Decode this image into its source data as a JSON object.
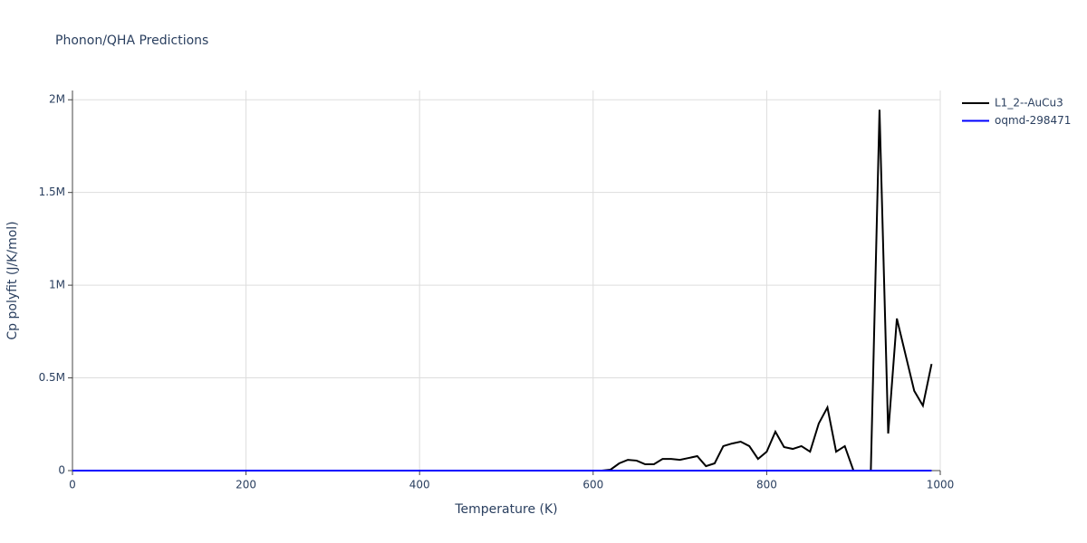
{
  "chart_data": {
    "type": "line",
    "title": "Phonon/QHA Predictions",
    "x_label": "Temperature (K)",
    "y_label": "Cp polyfit (J/K/mol)",
    "x": [
      0,
      10,
      20,
      30,
      40,
      50,
      60,
      70,
      80,
      90,
      100,
      110,
      120,
      130,
      140,
      150,
      160,
      170,
      180,
      190,
      200,
      210,
      220,
      230,
      240,
      250,
      260,
      270,
      280,
      290,
      300,
      310,
      320,
      330,
      340,
      350,
      360,
      370,
      380,
      390,
      400,
      410,
      420,
      430,
      440,
      450,
      460,
      470,
      480,
      490,
      500,
      510,
      520,
      530,
      540,
      550,
      560,
      570,
      580,
      590,
      600,
      610,
      620,
      630,
      640,
      650,
      660,
      670,
      680,
      690,
      700,
      710,
      720,
      730,
      740,
      750,
      760,
      770,
      780,
      790,
      800,
      810,
      820,
      830,
      840,
      850,
      860,
      870,
      880,
      890,
      900,
      910,
      920,
      930,
      940,
      950,
      960,
      970,
      980,
      990
    ],
    "series": [
      {
        "name": "L1_2--AuCu3",
        "color": "#000000",
        "values": [
          0,
          0,
          0,
          0,
          0,
          0,
          0,
          0,
          0,
          0,
          0,
          0,
          0,
          0,
          0,
          0,
          0,
          0,
          0,
          0,
          0,
          0,
          0,
          0,
          0,
          0,
          0,
          0,
          0,
          0,
          0,
          0,
          0,
          0,
          0,
          0,
          0,
          0,
          0,
          0,
          0,
          0,
          0,
          0,
          0,
          0,
          0,
          0,
          0,
          0,
          0,
          0,
          0,
          0,
          0,
          0,
          0,
          0,
          0,
          0,
          0,
          0,
          5000,
          39000,
          58000,
          54000,
          34000,
          34000,
          63000,
          63000,
          58000,
          68000,
          78000,
          24000,
          39000,
          132000,
          146000,
          156000,
          132000,
          63000,
          102000,
          210000,
          127000,
          117000,
          132000,
          102000,
          254000,
          341000,
          102000,
          132000,
          0,
          0,
          0,
          1946000,
          200000,
          820000,
          625000,
          430000,
          350000,
          575000
        ]
      },
      {
        "name": "oqmd-298471",
        "color": "#0000ff",
        "values": [
          0,
          0,
          0,
          0,
          0,
          0,
          0,
          0,
          0,
          0,
          0,
          0,
          0,
          0,
          0,
          0,
          0,
          0,
          0,
          0,
          0,
          0,
          0,
          0,
          0,
          0,
          0,
          0,
          0,
          0,
          0,
          0,
          0,
          0,
          0,
          0,
          0,
          0,
          0,
          0,
          0,
          0,
          0,
          0,
          0,
          0,
          0,
          0,
          0,
          0,
          0,
          0,
          0,
          0,
          0,
          0,
          0,
          0,
          0,
          0,
          0,
          0,
          0,
          0,
          0,
          0,
          0,
          0,
          0,
          0,
          0,
          0,
          0,
          0,
          0,
          0,
          0,
          0,
          0,
          0,
          0,
          0,
          0,
          0,
          0,
          0,
          0,
          0,
          0,
          0,
          0,
          0,
          0,
          0,
          0,
          0,
          0,
          0,
          0,
          0
        ]
      }
    ],
    "xlim": [
      0,
      1000
    ],
    "xticks": [
      0,
      200,
      400,
      600,
      800,
      1000
    ],
    "ylim": [
      0,
      2050000
    ],
    "yticks": [
      0,
      {
        "value": 500000,
        "label": "0.5M"
      },
      {
        "value": 1000000,
        "label": "1M"
      },
      {
        "value": 1500000,
        "label": "1.5M"
      },
      {
        "value": 2000000,
        "label": "2M"
      }
    ],
    "grid": true,
    "legend": "top-right"
  }
}
